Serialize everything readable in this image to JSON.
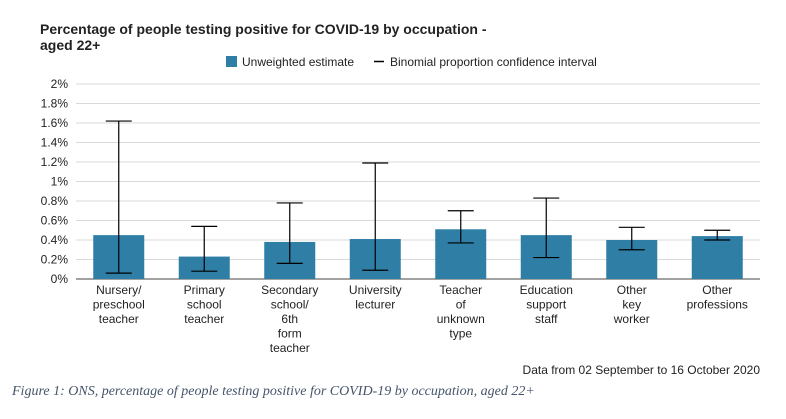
{
  "title": "Percentage of people testing positive for COVID-19 by occupation - aged 22+",
  "source_note": "Data from 02 September to 16 October 2020",
  "caption": "Figure 1: ONS, percentage of people testing positive for COVID-19 by occupation, aged 22+",
  "chart_data": {
    "type": "bar",
    "title": "Percentage of people testing positive for COVID-19 by occupation - aged 22+",
    "legend": {
      "placement": "top",
      "entries": [
        {
          "name": "Unweighted estimate",
          "kind": "bar",
          "color": "#2e7ea6"
        },
        {
          "name": "Binomial proportion confidence interval",
          "kind": "errorbar",
          "color": "#000000"
        }
      ]
    },
    "categories": [
      [
        "Nursery/",
        "preschool",
        "teacher"
      ],
      [
        "Primary",
        "school",
        "teacher"
      ],
      [
        "Secondary",
        "school/",
        "6th",
        "form",
        "teacher"
      ],
      [
        "University",
        "lecturer"
      ],
      [
        "Teacher",
        "of",
        "unknown",
        "type"
      ],
      [
        "Education",
        "support",
        "staff"
      ],
      [
        "Other",
        "key",
        "worker"
      ],
      [
        "Other",
        "professions"
      ]
    ],
    "series": [
      {
        "name": "Unweighted estimate",
        "values": [
          0.45,
          0.23,
          0.38,
          0.41,
          0.51,
          0.45,
          0.4,
          0.44
        ],
        "ci_lower": [
          0.06,
          0.08,
          0.16,
          0.09,
          0.37,
          0.22,
          0.3,
          0.4
        ],
        "ci_upper": [
          1.62,
          0.54,
          0.78,
          1.19,
          0.7,
          0.83,
          0.53,
          0.5
        ]
      }
    ],
    "ylim": [
      0,
      2
    ],
    "yticks": [
      "0%",
      "0.2%",
      "0.4%",
      "0.6%",
      "0.8%",
      "1%",
      "1.2%",
      "1.4%",
      "1.6%",
      "1.8%",
      "2%"
    ],
    "grid": true,
    "bar_color": "#2e7ea6"
  }
}
